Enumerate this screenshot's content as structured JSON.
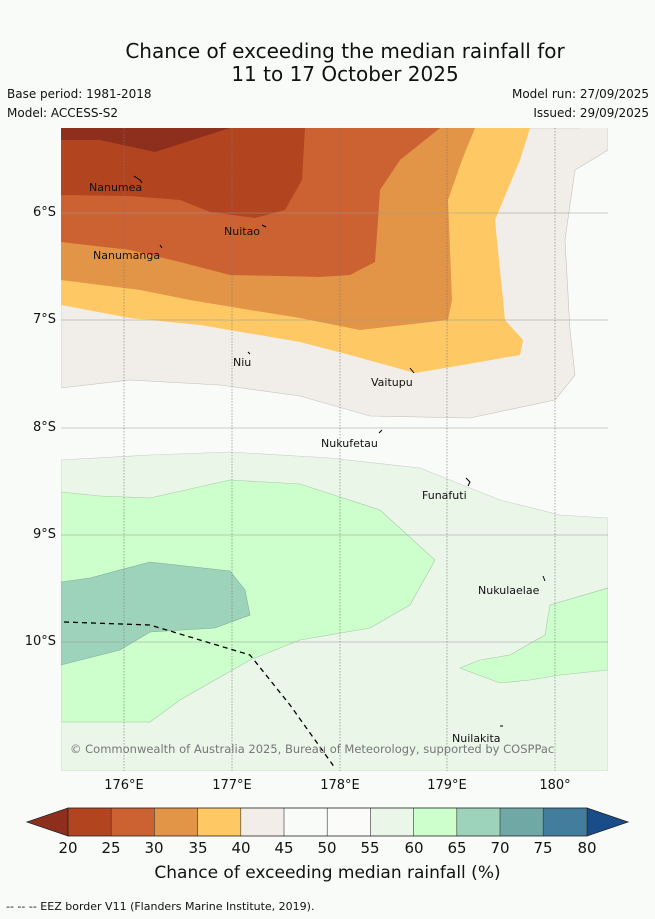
{
  "title": {
    "line1": "Chance of exceeding the median rainfall for",
    "line2": "11 to 17 October 2025"
  },
  "meta": {
    "base_period": "Base period: 1981-2018",
    "model": "Model: ACCESS-S2",
    "model_run": "Model run: 27/09/2025",
    "issued": "Issued: 29/09/2025"
  },
  "map": {
    "lat_ticks": [
      "6°S",
      "7°S",
      "8°S",
      "9°S",
      "10°S"
    ],
    "lon_ticks": [
      "176°E",
      "177°E",
      "178°E",
      "179°E",
      "180°"
    ],
    "places": [
      "Nanumea",
      "Nuitao",
      "Nanumanga",
      "Niu",
      "Vaitupu",
      "Nukufetau",
      "Funafuti",
      "Nukulaelae",
      "Nuilakita"
    ],
    "copyright": "© Commonwealth of Australia 2025, Bureau of Meteorology, supported by COSPPac"
  },
  "colorbar": {
    "labels": [
      "20",
      "25",
      "30",
      "35",
      "40",
      "45",
      "50",
      "55",
      "60",
      "65",
      "70",
      "75",
      "80"
    ],
    "colors": [
      "#8e2f1d",
      "#b2451f",
      "#cc6232",
      "#e29547",
      "#fec965",
      "#f2ede8",
      "#f9fbf9",
      "#fbfcfa",
      "#e9f6e8",
      "#ccffcc",
      "#9ed3bb",
      "#70a8a6",
      "#437d9e",
      "#194d8a"
    ],
    "title": "Chance of exceeding median rainfall (%)"
  },
  "footer": "-- -- -- EEZ border V11 (Flanders Marine Institute, 2019)."
}
